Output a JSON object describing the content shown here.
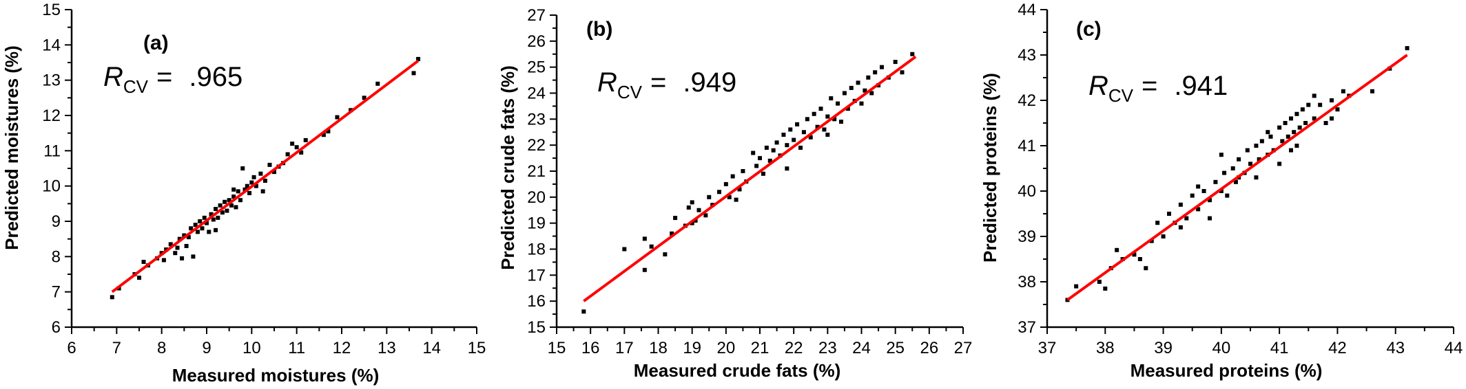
{
  "chart_data": [
    {
      "type": "scatter",
      "panel_label": "(a)",
      "xlabel": "Measured moistures (%)",
      "ylabel": "Predicted moistures (%)",
      "xlim": [
        6,
        15
      ],
      "ylim": [
        6,
        15
      ],
      "xticks": [
        "6",
        "7",
        "8",
        "9",
        "10",
        "11",
        "12",
        "13",
        "14",
        "15"
      ],
      "yticks": [
        "6",
        "7",
        "8",
        "9",
        "10",
        "11",
        "12",
        "13",
        "14",
        "15"
      ],
      "stat": {
        "symbol": "R",
        "subscript": "CV",
        "equals": "=",
        "value": ".965"
      },
      "fit_line": {
        "x": [
          6.9,
          13.7
        ],
        "y": [
          7.0,
          13.55
        ]
      },
      "colors": {
        "points": "#000000",
        "fit_line": "#ff0000"
      },
      "points": [
        [
          6.9,
          6.85
        ],
        [
          7.05,
          7.1
        ],
        [
          7.4,
          7.5
        ],
        [
          7.5,
          7.4
        ],
        [
          7.7,
          7.75
        ],
        [
          7.6,
          7.85
        ],
        [
          7.9,
          7.95
        ],
        [
          8.0,
          8.1
        ],
        [
          8.1,
          8.2
        ],
        [
          8.05,
          7.9
        ],
        [
          8.2,
          8.35
        ],
        [
          8.3,
          8.1
        ],
        [
          8.4,
          8.5
        ],
        [
          8.35,
          8.25
        ],
        [
          8.45,
          7.95
        ],
        [
          8.5,
          8.6
        ],
        [
          8.6,
          8.55
        ],
        [
          8.65,
          8.8
        ],
        [
          8.7,
          8.0
        ],
        [
          8.75,
          8.9
        ],
        [
          8.8,
          8.7
        ],
        [
          8.85,
          9.0
        ],
        [
          8.9,
          8.8
        ],
        [
          8.95,
          9.1
        ],
        [
          9.0,
          8.95
        ],
        [
          9.05,
          8.7
        ],
        [
          9.1,
          9.2
        ],
        [
          9.15,
          9.05
        ],
        [
          9.2,
          9.35
        ],
        [
          9.25,
          9.1
        ],
        [
          9.3,
          9.45
        ],
        [
          9.35,
          9.25
        ],
        [
          9.4,
          9.55
        ],
        [
          9.45,
          9.3
        ],
        [
          9.5,
          9.6
        ],
        [
          9.55,
          9.45
        ],
        [
          9.6,
          9.7
        ],
        [
          9.65,
          9.4
        ],
        [
          9.7,
          9.85
        ],
        [
          9.75,
          9.6
        ],
        [
          9.8,
          10.5
        ],
        [
          9.85,
          9.9
        ],
        [
          9.9,
          10.0
        ],
        [
          9.95,
          9.8
        ],
        [
          10.0,
          10.1
        ],
        [
          10.05,
          10.25
        ],
        [
          10.1,
          10.0
        ],
        [
          10.2,
          10.35
        ],
        [
          10.3,
          10.15
        ],
        [
          10.4,
          10.6
        ],
        [
          10.5,
          10.4
        ],
        [
          10.6,
          10.55
        ],
        [
          10.7,
          10.65
        ],
        [
          10.8,
          10.9
        ],
        [
          10.9,
          11.2
        ],
        [
          11.0,
          11.1
        ],
        [
          11.1,
          10.95
        ],
        [
          11.2,
          11.3
        ],
        [
          11.6,
          11.45
        ],
        [
          11.7,
          11.55
        ],
        [
          11.9,
          11.95
        ],
        [
          12.2,
          12.15
        ],
        [
          12.5,
          12.5
        ],
        [
          12.8,
          12.9
        ],
        [
          13.6,
          13.2
        ],
        [
          13.7,
          13.6
        ],
        [
          9.2,
          8.75
        ],
        [
          9.6,
          9.9
        ],
        [
          8.55,
          8.3
        ],
        [
          10.25,
          9.85
        ]
      ]
    },
    {
      "type": "scatter",
      "panel_label": "(b)",
      "xlabel": "Measured crude fats (%)",
      "ylabel": "Predicted crude fats (%)",
      "xlim": [
        15,
        27
      ],
      "ylim": [
        15,
        27
      ],
      "xticks": [
        "15",
        "16",
        "17",
        "18",
        "19",
        "20",
        "21",
        "22",
        "23",
        "24",
        "25",
        "26",
        "27"
      ],
      "yticks": [
        "15",
        "16",
        "17",
        "18",
        "19",
        "20",
        "21",
        "22",
        "23",
        "24",
        "25",
        "26",
        "27"
      ],
      "stat": {
        "symbol": "R",
        "subscript": "CV",
        "equals": "=",
        "value": ".949"
      },
      "fit_line": {
        "x": [
          15.8,
          25.6
        ],
        "y": [
          16.0,
          25.4
        ]
      },
      "colors": {
        "points": "#000000",
        "fit_line": "#ff0000"
      },
      "points": [
        [
          15.8,
          15.6
        ],
        [
          17.0,
          18.0
        ],
        [
          17.6,
          17.2
        ],
        [
          17.6,
          18.4
        ],
        [
          17.8,
          18.1
        ],
        [
          18.2,
          17.8
        ],
        [
          18.4,
          18.6
        ],
        [
          18.5,
          19.2
        ],
        [
          18.8,
          18.9
        ],
        [
          18.9,
          19.6
        ],
        [
          19.0,
          19.8
        ],
        [
          19.1,
          19.1
        ],
        [
          19.2,
          19.5
        ],
        [
          19.4,
          19.3
        ],
        [
          19.5,
          20.0
        ],
        [
          19.6,
          19.7
        ],
        [
          19.8,
          20.2
        ],
        [
          20.0,
          20.5
        ],
        [
          20.1,
          20.0
        ],
        [
          20.2,
          20.8
        ],
        [
          20.4,
          20.3
        ],
        [
          20.5,
          21.0
        ],
        [
          20.6,
          20.6
        ],
        [
          20.8,
          21.7
        ],
        [
          20.9,
          21.2
        ],
        [
          21.0,
          21.5
        ],
        [
          21.1,
          20.9
        ],
        [
          21.2,
          21.9
        ],
        [
          21.3,
          21.4
        ],
        [
          21.4,
          21.8
        ],
        [
          21.5,
          22.1
        ],
        [
          21.6,
          21.6
        ],
        [
          21.7,
          22.4
        ],
        [
          21.8,
          22.0
        ],
        [
          21.9,
          22.6
        ],
        [
          22.0,
          22.2
        ],
        [
          22.1,
          22.8
        ],
        [
          22.2,
          21.9
        ],
        [
          22.3,
          22.5
        ],
        [
          22.4,
          23.0
        ],
        [
          22.5,
          22.3
        ],
        [
          22.6,
          23.2
        ],
        [
          22.7,
          22.7
        ],
        [
          22.8,
          23.4
        ],
        [
          22.9,
          22.6
        ],
        [
          23.0,
          23.1
        ],
        [
          23.1,
          23.8
        ],
        [
          23.2,
          23.0
        ],
        [
          23.3,
          23.6
        ],
        [
          23.4,
          22.9
        ],
        [
          23.5,
          24.0
        ],
        [
          23.6,
          23.4
        ],
        [
          23.7,
          24.2
        ],
        [
          23.8,
          23.7
        ],
        [
          23.9,
          24.4
        ],
        [
          24.0,
          23.6
        ],
        [
          24.1,
          24.1
        ],
        [
          24.2,
          24.6
        ],
        [
          24.3,
          24.0
        ],
        [
          24.4,
          24.8
        ],
        [
          24.5,
          24.3
        ],
        [
          24.6,
          25.0
        ],
        [
          24.8,
          24.6
        ],
        [
          25.0,
          25.2
        ],
        [
          25.2,
          24.8
        ],
        [
          25.5,
          25.5
        ],
        [
          19.0,
          19.0
        ],
        [
          20.3,
          19.9
        ],
        [
          21.8,
          21.1
        ],
        [
          23.0,
          22.4
        ]
      ]
    },
    {
      "type": "scatter",
      "panel_label": "(c)",
      "xlabel": "Measured proteins (%)",
      "ylabel": "Predicted proteins (%)",
      "xlim": [
        37,
        44
      ],
      "ylim": [
        37,
        44
      ],
      "xticks": [
        "37",
        "38",
        "39",
        "40",
        "41",
        "42",
        "43",
        "44"
      ],
      "yticks": [
        "37",
        "38",
        "39",
        "40",
        "41",
        "42",
        "43",
        "44"
      ],
      "stat": {
        "symbol": "R",
        "subscript": "CV",
        "equals": "=",
        "value": ".941"
      },
      "fit_line": {
        "x": [
          37.35,
          43.2
        ],
        "y": [
          37.6,
          43.0
        ]
      },
      "colors": {
        "points": "#000000",
        "fit_line": "#ff0000"
      },
      "points": [
        [
          37.35,
          37.6
        ],
        [
          37.5,
          37.9
        ],
        [
          37.9,
          38.0
        ],
        [
          38.0,
          37.85
        ],
        [
          38.1,
          38.3
        ],
        [
          38.2,
          38.7
        ],
        [
          38.3,
          38.5
        ],
        [
          38.5,
          38.6
        ],
        [
          38.7,
          38.3
        ],
        [
          38.8,
          38.9
        ],
        [
          38.9,
          39.3
        ],
        [
          39.0,
          39.0
        ],
        [
          39.1,
          39.5
        ],
        [
          39.2,
          39.3
        ],
        [
          39.3,
          39.7
        ],
        [
          39.4,
          39.4
        ],
        [
          39.5,
          39.9
        ],
        [
          39.6,
          39.6
        ],
        [
          39.7,
          40.0
        ],
        [
          39.8,
          39.8
        ],
        [
          39.9,
          40.2
        ],
        [
          40.0,
          40.0
        ],
        [
          40.05,
          40.4
        ],
        [
          40.1,
          39.9
        ],
        [
          40.2,
          40.5
        ],
        [
          40.25,
          40.2
        ],
        [
          40.3,
          40.7
        ],
        [
          40.4,
          40.4
        ],
        [
          40.45,
          40.9
        ],
        [
          40.5,
          40.6
        ],
        [
          40.6,
          41.0
        ],
        [
          40.65,
          40.7
        ],
        [
          40.7,
          41.1
        ],
        [
          40.8,
          40.8
        ],
        [
          40.85,
          41.2
        ],
        [
          40.9,
          40.9
        ],
        [
          41.0,
          41.4
        ],
        [
          41.05,
          41.1
        ],
        [
          41.1,
          41.5
        ],
        [
          41.15,
          41.2
        ],
        [
          41.2,
          41.6
        ],
        [
          41.25,
          41.3
        ],
        [
          41.3,
          41.7
        ],
        [
          41.35,
          41.4
        ],
        [
          41.4,
          41.8
        ],
        [
          41.45,
          41.5
        ],
        [
          41.5,
          41.9
        ],
        [
          41.6,
          41.6
        ],
        [
          41.7,
          41.9
        ],
        [
          41.8,
          41.5
        ],
        [
          41.9,
          42.0
        ],
        [
          42.0,
          41.8
        ],
        [
          42.1,
          42.2
        ],
        [
          42.2,
          42.1
        ],
        [
          42.6,
          42.2
        ],
        [
          42.9,
          42.7
        ],
        [
          43.2,
          43.15
        ],
        [
          39.3,
          39.2
        ],
        [
          40.6,
          40.3
        ],
        [
          41.0,
          40.6
        ],
        [
          40.3,
          40.3
        ],
        [
          39.8,
          39.4
        ],
        [
          41.3,
          41.0
        ],
        [
          40.8,
          41.3
        ],
        [
          41.6,
          42.1
        ],
        [
          38.6,
          38.5
        ],
        [
          39.6,
          40.1
        ],
        [
          40.0,
          40.8
        ],
        [
          41.2,
          40.9
        ],
        [
          41.9,
          41.6
        ]
      ]
    }
  ]
}
